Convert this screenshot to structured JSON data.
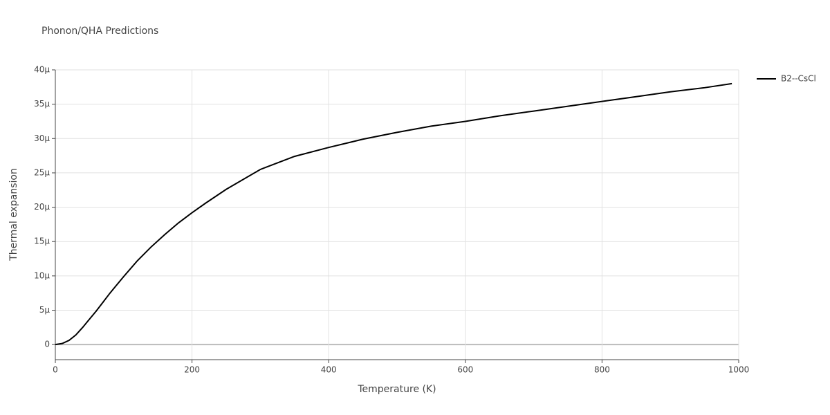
{
  "chart_data": {
    "type": "line",
    "title": "Phonon/QHA Predictions",
    "xlabel": "Temperature (K)",
    "ylabel": "Thermal expansion",
    "x": [
      0,
      10,
      20,
      30,
      40,
      50,
      60,
      70,
      80,
      90,
      100,
      120,
      140,
      160,
      180,
      200,
      220,
      250,
      300,
      350,
      400,
      450,
      500,
      550,
      600,
      650,
      700,
      750,
      800,
      850,
      900,
      950,
      990
    ],
    "series": [
      {
        "name": "B2--CsCl",
        "color": "#000000",
        "values": [
          0,
          1.5e-07,
          6e-07,
          1.4e-06,
          2.5e-06,
          3.7e-06,
          4.9e-06,
          6.2e-06,
          7.5e-06,
          8.7e-06,
          9.9e-06,
          1.22e-05,
          1.42e-05,
          1.6e-05,
          1.77e-05,
          1.92e-05,
          2.06e-05,
          2.26e-05,
          2.55e-05,
          2.74e-05,
          2.87e-05,
          2.99e-05,
          3.09e-05,
          3.18e-05,
          3.25e-05,
          3.33e-05,
          3.4e-05,
          3.47e-05,
          3.54e-05,
          3.61e-05,
          3.68e-05,
          3.74e-05,
          3.8e-05
        ]
      }
    ],
    "xlim": [
      0,
      1000
    ],
    "xticks": [
      0,
      200,
      400,
      600,
      800,
      1000
    ],
    "ylim": [
      -2.2e-06,
      4e-05
    ],
    "yticks": [
      0,
      {
        "value": 5e-06,
        "label": "5μ"
      },
      {
        "value": 1e-05,
        "label": "10μ"
      },
      {
        "value": 1.5e-05,
        "label": "15μ"
      },
      {
        "value": 2e-05,
        "label": "20μ"
      },
      {
        "value": 2.5e-05,
        "label": "25μ"
      },
      {
        "value": 3e-05,
        "label": "30μ"
      },
      {
        "value": 3.5e-05,
        "label": "35μ"
      },
      {
        "value": 4e-05,
        "label": "40μ"
      }
    ],
    "grid": true,
    "legend": "right"
  }
}
